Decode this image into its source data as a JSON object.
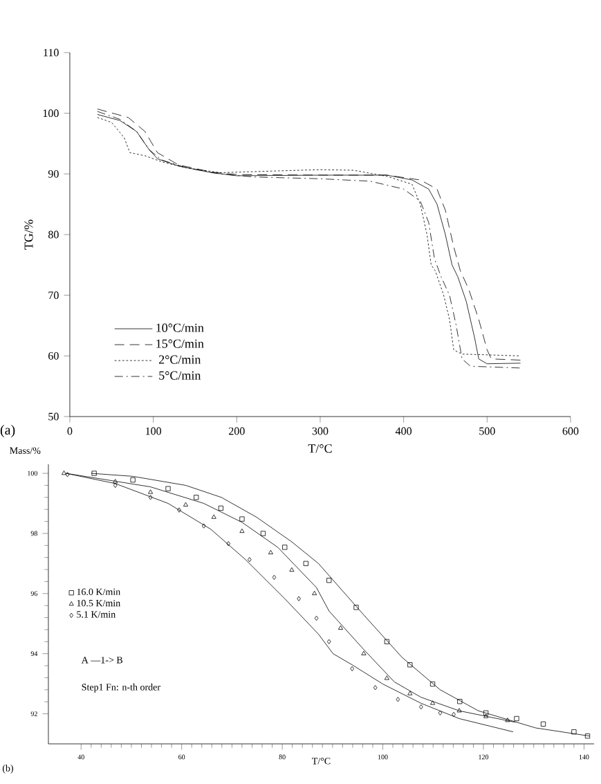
{
  "chart_data": [
    {
      "type": "line",
      "xlabel": "T/°C",
      "ylabel": "TG/%",
      "xlim": [
        0,
        600
      ],
      "ylim": [
        50,
        110
      ],
      "xticks": [
        0,
        100,
        200,
        300,
        400,
        500,
        600
      ],
      "yticks": [
        50,
        60,
        70,
        80,
        90,
        100,
        110
      ],
      "legend": "bottom left",
      "annotations": [
        "(a)"
      ],
      "series": [
        {
          "name": "10°C/min",
          "color": "#000000",
          "line_style": "solid",
          "x": [
            33,
            60,
            80,
            95,
            105,
            130,
            170,
            200,
            300,
            380,
            410,
            430,
            440,
            450,
            458,
            465,
            475,
            485,
            490,
            500,
            540
          ],
          "values": [
            99.8,
            98.8,
            97,
            94,
            92.5,
            91.3,
            90.2,
            89.7,
            89.8,
            89.8,
            89,
            87.5,
            85,
            80,
            75,
            73,
            69,
            63,
            59.5,
            58.7,
            58.8
          ]
        },
        {
          "name": "15°C/min",
          "color": "#000000",
          "line_style": "dashed",
          "x": [
            33,
            70,
            90,
            105,
            130,
            170,
            200,
            300,
            380,
            420,
            440,
            450,
            460,
            468,
            478,
            490,
            500,
            505,
            540
          ],
          "values": [
            100.7,
            99.3,
            97,
            93.5,
            91.5,
            90.3,
            89.9,
            89.8,
            89.8,
            89,
            87.5,
            84,
            78,
            74,
            71,
            66,
            61,
            59.5,
            59.3
          ]
        },
        {
          "name": "2°C/min",
          "color": "#000000",
          "line_style": "dotted",
          "x": [
            33,
            50,
            65,
            72,
            90,
            110,
            140,
            180,
            250,
            300,
            340,
            380,
            410,
            420,
            428,
            433,
            438,
            448,
            455,
            460,
            470,
            540
          ],
          "values": [
            99.3,
            98.5,
            96,
            93.5,
            93,
            92,
            91,
            90.2,
            90.5,
            90.7,
            90.6,
            89.6,
            88.3,
            85,
            80,
            75,
            74,
            70,
            66,
            61,
            60.3,
            60.0
          ]
        },
        {
          "name": "5°C/min",
          "color": "#000000",
          "line_style": "dashdot",
          "x": [
            33,
            60,
            80,
            95,
            110,
            140,
            180,
            220,
            300,
            360,
            400,
            420,
            430,
            437,
            445,
            455,
            463,
            470,
            480,
            540
          ],
          "values": [
            100.3,
            99,
            97,
            94,
            92.3,
            91,
            90,
            89.5,
            89.2,
            88.8,
            87.5,
            85.5,
            82,
            76,
            73,
            70,
            65,
            59.5,
            58.3,
            58.0
          ]
        }
      ]
    },
    {
      "type": "line",
      "xlabel": "T/°C",
      "ylabel": "Mass/%",
      "xlim": [
        33.5,
        142
      ],
      "ylim": [
        91.0,
        100.3
      ],
      "xticks": [
        40,
        60,
        80,
        100,
        120,
        140
      ],
      "yticks": [
        92,
        94,
        96,
        98,
        100
      ],
      "legend": "left",
      "annotations": [
        "A —1-> B",
        "Step1 Fn: n-th order",
        "(b)"
      ],
      "series": [
        {
          "type": "scatter",
          "name": "16.0 K/min",
          "color": "#000000",
          "marker": "square",
          "x": [
            42.6,
            50.3,
            57.3,
            62.9,
            67.8,
            72,
            76.2,
            80.5,
            84.7,
            89.3,
            94.7,
            100.8,
            105.4,
            109.9,
            115.3,
            120.5,
            126.6,
            131.9,
            138,
            140.7
          ],
          "values": [
            100,
            99.78,
            99.49,
            99.2,
            98.84,
            98.48,
            98.0,
            97.54,
            97.0,
            96.44,
            95.54,
            94.4,
            93.63,
            92.99,
            92.41,
            92.03,
            91.84,
            91.66,
            91.4,
            91.26
          ]
        },
        {
          "type": "scatter",
          "name": "10.5 K/min",
          "color": "#000000",
          "marker": "triangle",
          "x": [
            36.6,
            46.8,
            53.8,
            60.8,
            66.4,
            72,
            77.7,
            81.9,
            86.4,
            91.6,
            96.2,
            100.8,
            105.4,
            109.9,
            115.2,
            120.5,
            124.8
          ],
          "values": [
            100,
            99.72,
            99.37,
            98.95,
            98.54,
            98.07,
            97.36,
            96.78,
            96.0,
            94.85,
            94.0,
            93.18,
            92.67,
            92.35,
            92.1,
            91.91,
            91.78
          ]
        },
        {
          "type": "scatter",
          "name": "5.1 K/min",
          "color": "#000000",
          "marker": "diamond",
          "x": [
            37.3,
            46.8,
            53.8,
            59.5,
            64.4,
            69.3,
            73.5,
            78.4,
            83.3,
            86.8,
            89.3,
            93.9,
            98.5,
            103,
            107.6,
            111.4,
            114.1
          ],
          "values": [
            99.96,
            99.6,
            99.2,
            98.78,
            98.25,
            97.66,
            97.13,
            96.54,
            95.83,
            95.18,
            94.4,
            93.5,
            92.87,
            92.48,
            92.23,
            92.03,
            91.98
          ]
        },
        {
          "color": "#000000",
          "line_style": "solid",
          "marker": "none",
          "x": [
            42,
            50.3,
            60.8,
            67.9,
            74.9,
            81.9,
            87.2,
            96.2,
            103.8,
            111.4,
            119,
            130.4,
            141.1
          ],
          "values": [
            100,
            99.9,
            99.6,
            99.2,
            98.54,
            97.72,
            97.0,
            95.29,
            93.88,
            92.8,
            92.1,
            91.53,
            91.26
          ]
        },
        {
          "color": "#000000",
          "line_style": "solid",
          "marker": "none",
          "x": [
            37,
            53.8,
            64.4,
            72,
            79.1,
            86.8,
            89.3,
            96.2,
            102.3,
            107.6,
            115.2,
            126.3
          ],
          "values": [
            100,
            99.55,
            99.0,
            98.37,
            97.54,
            96.2,
            95.42,
            94.14,
            93.06,
            92.55,
            92.1,
            91.72
          ]
        },
        {
          "color": "#000000",
          "line_style": "solid",
          "marker": "none",
          "x": [
            37,
            46.8,
            57.3,
            65.8,
            72.7,
            80.5,
            87.2,
            90.1,
            93.9,
            100,
            107.6,
            115.2,
            125.9
          ],
          "values": [
            100,
            99.66,
            99.0,
            98.14,
            97.13,
            95.83,
            94.65,
            94.0,
            93.63,
            92.99,
            92.35,
            91.84,
            91.4
          ]
        }
      ]
    }
  ]
}
